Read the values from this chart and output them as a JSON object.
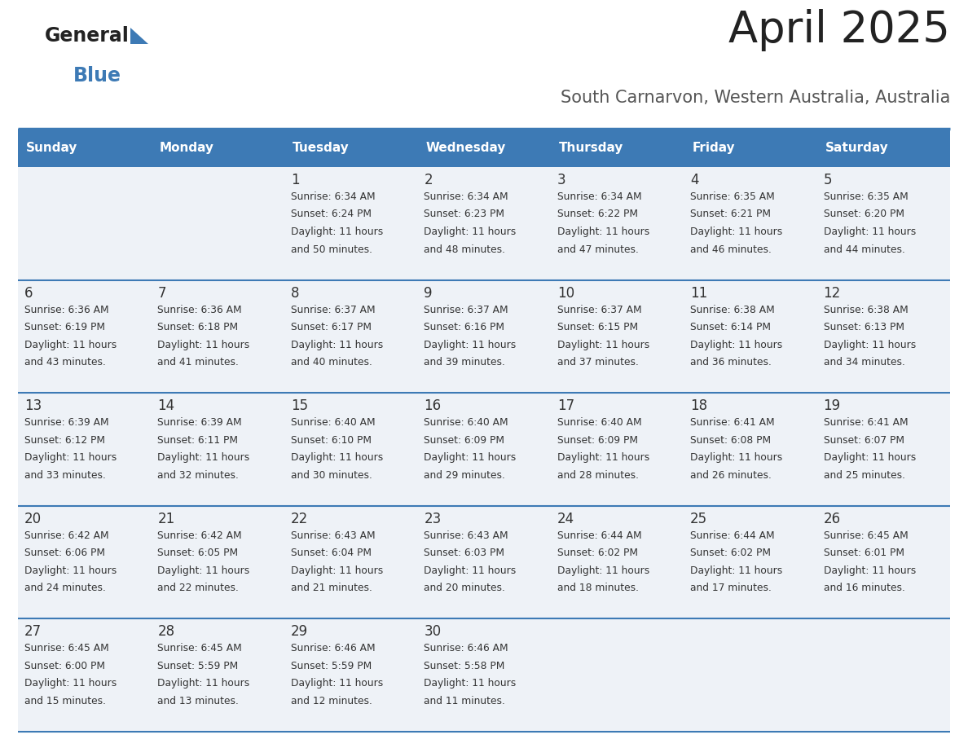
{
  "title": "April 2025",
  "subtitle": "South Carnarvon, Western Australia, Australia",
  "header_bg_color": "#3d7ab5",
  "header_text_color": "#ffffff",
  "cell_bg_color": "#eef2f7",
  "divider_color": "#3d7ab5",
  "text_color": "#444444",
  "days_of_week": [
    "Sunday",
    "Monday",
    "Tuesday",
    "Wednesday",
    "Thursday",
    "Friday",
    "Saturday"
  ],
  "weeks": [
    [
      {
        "day": "",
        "sunrise": "",
        "sunset": "",
        "daylight": ""
      },
      {
        "day": "",
        "sunrise": "",
        "sunset": "",
        "daylight": ""
      },
      {
        "day": "1",
        "sunrise": "Sunrise: 6:34 AM",
        "sunset": "Sunset: 6:24 PM",
        "daylight": "Daylight: 11 hours\nand 50 minutes."
      },
      {
        "day": "2",
        "sunrise": "Sunrise: 6:34 AM",
        "sunset": "Sunset: 6:23 PM",
        "daylight": "Daylight: 11 hours\nand 48 minutes."
      },
      {
        "day": "3",
        "sunrise": "Sunrise: 6:34 AM",
        "sunset": "Sunset: 6:22 PM",
        "daylight": "Daylight: 11 hours\nand 47 minutes."
      },
      {
        "day": "4",
        "sunrise": "Sunrise: 6:35 AM",
        "sunset": "Sunset: 6:21 PM",
        "daylight": "Daylight: 11 hours\nand 46 minutes."
      },
      {
        "day": "5",
        "sunrise": "Sunrise: 6:35 AM",
        "sunset": "Sunset: 6:20 PM",
        "daylight": "Daylight: 11 hours\nand 44 minutes."
      }
    ],
    [
      {
        "day": "6",
        "sunrise": "Sunrise: 6:36 AM",
        "sunset": "Sunset: 6:19 PM",
        "daylight": "Daylight: 11 hours\nand 43 minutes."
      },
      {
        "day": "7",
        "sunrise": "Sunrise: 6:36 AM",
        "sunset": "Sunset: 6:18 PM",
        "daylight": "Daylight: 11 hours\nand 41 minutes."
      },
      {
        "day": "8",
        "sunrise": "Sunrise: 6:37 AM",
        "sunset": "Sunset: 6:17 PM",
        "daylight": "Daylight: 11 hours\nand 40 minutes."
      },
      {
        "day": "9",
        "sunrise": "Sunrise: 6:37 AM",
        "sunset": "Sunset: 6:16 PM",
        "daylight": "Daylight: 11 hours\nand 39 minutes."
      },
      {
        "day": "10",
        "sunrise": "Sunrise: 6:37 AM",
        "sunset": "Sunset: 6:15 PM",
        "daylight": "Daylight: 11 hours\nand 37 minutes."
      },
      {
        "day": "11",
        "sunrise": "Sunrise: 6:38 AM",
        "sunset": "Sunset: 6:14 PM",
        "daylight": "Daylight: 11 hours\nand 36 minutes."
      },
      {
        "day": "12",
        "sunrise": "Sunrise: 6:38 AM",
        "sunset": "Sunset: 6:13 PM",
        "daylight": "Daylight: 11 hours\nand 34 minutes."
      }
    ],
    [
      {
        "day": "13",
        "sunrise": "Sunrise: 6:39 AM",
        "sunset": "Sunset: 6:12 PM",
        "daylight": "Daylight: 11 hours\nand 33 minutes."
      },
      {
        "day": "14",
        "sunrise": "Sunrise: 6:39 AM",
        "sunset": "Sunset: 6:11 PM",
        "daylight": "Daylight: 11 hours\nand 32 minutes."
      },
      {
        "day": "15",
        "sunrise": "Sunrise: 6:40 AM",
        "sunset": "Sunset: 6:10 PM",
        "daylight": "Daylight: 11 hours\nand 30 minutes."
      },
      {
        "day": "16",
        "sunrise": "Sunrise: 6:40 AM",
        "sunset": "Sunset: 6:09 PM",
        "daylight": "Daylight: 11 hours\nand 29 minutes."
      },
      {
        "day": "17",
        "sunrise": "Sunrise: 6:40 AM",
        "sunset": "Sunset: 6:09 PM",
        "daylight": "Daylight: 11 hours\nand 28 minutes."
      },
      {
        "day": "18",
        "sunrise": "Sunrise: 6:41 AM",
        "sunset": "Sunset: 6:08 PM",
        "daylight": "Daylight: 11 hours\nand 26 minutes."
      },
      {
        "day": "19",
        "sunrise": "Sunrise: 6:41 AM",
        "sunset": "Sunset: 6:07 PM",
        "daylight": "Daylight: 11 hours\nand 25 minutes."
      }
    ],
    [
      {
        "day": "20",
        "sunrise": "Sunrise: 6:42 AM",
        "sunset": "Sunset: 6:06 PM",
        "daylight": "Daylight: 11 hours\nand 24 minutes."
      },
      {
        "day": "21",
        "sunrise": "Sunrise: 6:42 AM",
        "sunset": "Sunset: 6:05 PM",
        "daylight": "Daylight: 11 hours\nand 22 minutes."
      },
      {
        "day": "22",
        "sunrise": "Sunrise: 6:43 AM",
        "sunset": "Sunset: 6:04 PM",
        "daylight": "Daylight: 11 hours\nand 21 minutes."
      },
      {
        "day": "23",
        "sunrise": "Sunrise: 6:43 AM",
        "sunset": "Sunset: 6:03 PM",
        "daylight": "Daylight: 11 hours\nand 20 minutes."
      },
      {
        "day": "24",
        "sunrise": "Sunrise: 6:44 AM",
        "sunset": "Sunset: 6:02 PM",
        "daylight": "Daylight: 11 hours\nand 18 minutes."
      },
      {
        "day": "25",
        "sunrise": "Sunrise: 6:44 AM",
        "sunset": "Sunset: 6:02 PM",
        "daylight": "Daylight: 11 hours\nand 17 minutes."
      },
      {
        "day": "26",
        "sunrise": "Sunrise: 6:45 AM",
        "sunset": "Sunset: 6:01 PM",
        "daylight": "Daylight: 11 hours\nand 16 minutes."
      }
    ],
    [
      {
        "day": "27",
        "sunrise": "Sunrise: 6:45 AM",
        "sunset": "Sunset: 6:00 PM",
        "daylight": "Daylight: 11 hours\nand 15 minutes."
      },
      {
        "day": "28",
        "sunrise": "Sunrise: 6:45 AM",
        "sunset": "Sunset: 5:59 PM",
        "daylight": "Daylight: 11 hours\nand 13 minutes."
      },
      {
        "day": "29",
        "sunrise": "Sunrise: 6:46 AM",
        "sunset": "Sunset: 5:59 PM",
        "daylight": "Daylight: 11 hours\nand 12 minutes."
      },
      {
        "day": "30",
        "sunrise": "Sunrise: 6:46 AM",
        "sunset": "Sunset: 5:58 PM",
        "daylight": "Daylight: 11 hours\nand 11 minutes."
      },
      {
        "day": "",
        "sunrise": "",
        "sunset": "",
        "daylight": ""
      },
      {
        "day": "",
        "sunrise": "",
        "sunset": "",
        "daylight": ""
      },
      {
        "day": "",
        "sunrise": "",
        "sunset": "",
        "daylight": ""
      }
    ]
  ]
}
